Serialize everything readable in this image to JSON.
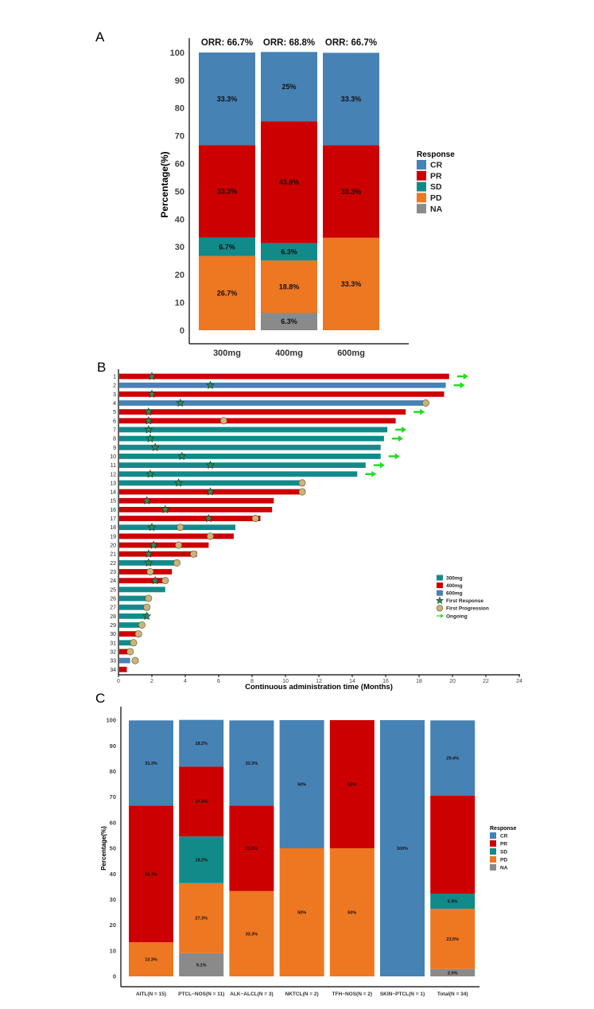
{
  "colors": {
    "CR": "#4682B4",
    "PR": "#CC0000",
    "SD": "#138A8A",
    "PD": "#EE7722",
    "NA": "#8A8A8A",
    "dose300": "#138A8A",
    "dose400": "#CC0000",
    "dose600": "#4682B4",
    "star": "#2E8B57",
    "progress": "#C8B57A",
    "arrow": "#22DD22"
  },
  "chart_data": [
    {
      "panel": "A",
      "type": "bar",
      "stacked": true,
      "ylabel": "Percentage(%)",
      "ylim": [
        0,
        100
      ],
      "yticks": [
        "0",
        "10",
        "20",
        "30",
        "40",
        "50",
        "60",
        "70",
        "80",
        "90",
        "100"
      ],
      "categories": [
        "300mg",
        "400mg",
        "600mg"
      ],
      "headers": [
        "ORR: 66.7%",
        "ORR: 68.8%",
        "ORR: 66.7%"
      ],
      "series": [
        {
          "name": "NA",
          "values": [
            0,
            6.3,
            0
          ],
          "labels": [
            "",
            "6.3%",
            ""
          ]
        },
        {
          "name": "PD",
          "values": [
            26.7,
            18.8,
            33.3
          ],
          "labels": [
            "26.7%",
            "18.8%",
            "33.3%"
          ]
        },
        {
          "name": "SD",
          "values": [
            6.7,
            6.3,
            0
          ],
          "labels": [
            "6.7%",
            "6.3%",
            ""
          ]
        },
        {
          "name": "PR",
          "values": [
            33.3,
            43.8,
            33.3
          ],
          "labels": [
            "33.3%",
            "43.8%",
            "33.3%"
          ]
        },
        {
          "name": "CR",
          "values": [
            33.3,
            25,
            33.3
          ],
          "labels": [
            "33.3%",
            "25%",
            "33.3%"
          ]
        }
      ],
      "legend": {
        "title": "Response",
        "items": [
          "CR",
          "PR",
          "SD",
          "PD",
          "NA"
        ],
        "position": "right"
      }
    },
    {
      "panel": "B",
      "type": "bar",
      "orientation": "horizontal",
      "xlabel": "Continuous administration time (Months)",
      "xlim": [
        0,
        24
      ],
      "xticks": [
        "0",
        "2",
        "4",
        "6",
        "8",
        "10",
        "12",
        "14",
        "16",
        "18",
        "20",
        "22",
        "24"
      ],
      "patients": [
        {
          "id": "1",
          "dose": "400mg",
          "duration": 19.8,
          "response": 2.0,
          "progression": null,
          "ongoing": true
        },
        {
          "id": "2",
          "dose": "600mg",
          "duration": 19.6,
          "response": 5.5,
          "progression": null,
          "ongoing": true
        },
        {
          "id": "3",
          "dose": "400mg",
          "duration": 19.5,
          "response": 2.0,
          "progression": null,
          "ongoing": false
        },
        {
          "id": "4",
          "dose": "600mg",
          "duration": 18.4,
          "response": 3.7,
          "progression": 18.4,
          "ongoing": false
        },
        {
          "id": "5",
          "dose": "400mg",
          "duration": 17.2,
          "response": 1.8,
          "progression": null,
          "ongoing": true
        },
        {
          "id": "6",
          "dose": "400mg",
          "duration": 16.6,
          "response": 1.8,
          "progression": 6.3,
          "ongoing": false
        },
        {
          "id": "7",
          "dose": "300mg",
          "duration": 16.1,
          "response": 1.8,
          "progression": null,
          "ongoing": true
        },
        {
          "id": "8",
          "dose": "300mg",
          "duration": 15.9,
          "response": 1.9,
          "progression": null,
          "ongoing": true
        },
        {
          "id": "9",
          "dose": "300mg",
          "duration": 15.7,
          "response": 2.2,
          "progression": null,
          "ongoing": false
        },
        {
          "id": "10",
          "dose": "300mg",
          "duration": 15.7,
          "response": 3.8,
          "progression": null,
          "ongoing": true
        },
        {
          "id": "11",
          "dose": "300mg",
          "duration": 14.8,
          "response": 5.5,
          "progression": null,
          "ongoing": true
        },
        {
          "id": "12",
          "dose": "300mg",
          "duration": 14.3,
          "response": 1.9,
          "progression": null,
          "ongoing": true
        },
        {
          "id": "13",
          "dose": "300mg",
          "duration": 11.0,
          "response": 3.6,
          "progression": 11.0,
          "ongoing": false
        },
        {
          "id": "14",
          "dose": "400mg",
          "duration": 11.0,
          "response": 5.5,
          "progression": 11.0,
          "ongoing": false
        },
        {
          "id": "15",
          "dose": "400mg",
          "duration": 9.3,
          "response": 1.7,
          "progression": null,
          "ongoing": false
        },
        {
          "id": "16",
          "dose": "400mg",
          "duration": 9.2,
          "response": 2.8,
          "progression": null,
          "ongoing": false
        },
        {
          "id": "17",
          "dose": "400mg",
          "duration": 8.5,
          "response": 5.4,
          "progression": 8.2,
          "ongoing": false
        },
        {
          "id": "18",
          "dose": "300mg",
          "duration": 7.0,
          "response": 2.0,
          "progression": 3.7,
          "ongoing": false
        },
        {
          "id": "19",
          "dose": "400mg",
          "duration": 6.9,
          "response": null,
          "progression": 5.5,
          "ongoing": false
        },
        {
          "id": "20",
          "dose": "400mg",
          "duration": 5.4,
          "response": 2.1,
          "progression": 3.6,
          "ongoing": false
        },
        {
          "id": "21",
          "dose": "400mg",
          "duration": 4.7,
          "response": 1.8,
          "progression": 4.5,
          "ongoing": false
        },
        {
          "id": "22",
          "dose": "300mg",
          "duration": 3.6,
          "response": 1.8,
          "progression": 3.5,
          "ongoing": false
        },
        {
          "id": "23",
          "dose": "400mg",
          "duration": 3.2,
          "response": null,
          "progression": 1.9,
          "ongoing": false
        },
        {
          "id": "24",
          "dose": "400mg",
          "duration": 2.9,
          "response": 2.2,
          "progression": 2.8,
          "ongoing": false
        },
        {
          "id": "25",
          "dose": "300mg",
          "duration": 2.8,
          "response": null,
          "progression": null,
          "ongoing": false
        },
        {
          "id": "26",
          "dose": "300mg",
          "duration": 1.9,
          "response": null,
          "progression": 1.8,
          "ongoing": false
        },
        {
          "id": "27",
          "dose": "300mg",
          "duration": 1.8,
          "response": null,
          "progression": 1.7,
          "ongoing": false
        },
        {
          "id": "28",
          "dose": "300mg",
          "duration": 1.8,
          "response": 1.7,
          "progression": null,
          "ongoing": false
        },
        {
          "id": "29",
          "dose": "300mg",
          "duration": 1.5,
          "response": null,
          "progression": 1.4,
          "ongoing": false
        },
        {
          "id": "30",
          "dose": "400mg",
          "duration": 1.3,
          "response": null,
          "progression": 1.2,
          "ongoing": false
        },
        {
          "id": "31",
          "dose": "300mg",
          "duration": 0.9,
          "response": null,
          "progression": 0.9,
          "ongoing": false
        },
        {
          "id": "32",
          "dose": "400mg",
          "duration": 0.8,
          "response": null,
          "progression": 0.7,
          "ongoing": false
        },
        {
          "id": "33",
          "dose": "600mg",
          "duration": 0.7,
          "response": null,
          "progression": 1.0,
          "ongoing": false
        },
        {
          "id": "34",
          "dose": "400mg",
          "duration": 0.5,
          "response": null,
          "progression": null,
          "ongoing": false
        }
      ],
      "legend": {
        "items": [
          "300mg",
          "400mg",
          "600mg",
          "First Response",
          "First Progression",
          "Ongoing"
        ],
        "position": "right"
      }
    },
    {
      "panel": "C",
      "type": "bar",
      "stacked": true,
      "ylabel": "Percentage(%)",
      "ylim": [
        0,
        100
      ],
      "yticks": [
        "0",
        "10",
        "20",
        "30",
        "40",
        "50",
        "60",
        "70",
        "80",
        "90",
        "100"
      ],
      "categories": [
        "AITL(N = 15)",
        "PTCL−NOS(N = 11)",
        "ALK−ALCL(N = 3)",
        "NKTCL(N = 2)",
        "TFH−NOS(N = 2)",
        "SKIN−PTCL(N = 1)",
        "Total(N = 34)"
      ],
      "series": [
        {
          "name": "NA",
          "values": [
            0,
            9.1,
            0,
            0,
            0,
            0,
            2.9
          ],
          "labels": [
            "",
            "9.1%",
            "",
            "",
            "",
            "",
            "2.9%"
          ]
        },
        {
          "name": "PD",
          "values": [
            13.3,
            27.3,
            33.3,
            50,
            50,
            0,
            23.5
          ],
          "labels": [
            "13.3%",
            "27.3%",
            "33.3%",
            "50%",
            "50%",
            "",
            "23.5%"
          ]
        },
        {
          "name": "SD",
          "values": [
            0,
            18.2,
            0,
            0,
            0,
            0,
            5.9
          ],
          "labels": [
            "",
            "18.2%",
            "",
            "",
            "",
            "",
            "5.9%"
          ]
        },
        {
          "name": "PR",
          "values": [
            53.3,
            27.3,
            33.3,
            0,
            50,
            0,
            38.2
          ],
          "labels": [
            "53.3%",
            "27.3%",
            "33.3%",
            "",
            "50%",
            "",
            ""
          ]
        },
        {
          "name": "CR",
          "values": [
            33.3,
            18.2,
            33.3,
            50,
            0,
            100,
            29.4
          ],
          "labels": [
            "33.3%",
            "18.2%",
            "33.3%",
            "50%",
            "",
            "100%",
            "29.4%"
          ]
        }
      ],
      "legend": {
        "title": "Response",
        "items": [
          "CR",
          "PR",
          "SD",
          "PD",
          "NA"
        ],
        "position": "right"
      }
    }
  ],
  "panel_labels": [
    "A",
    "B",
    "C"
  ]
}
